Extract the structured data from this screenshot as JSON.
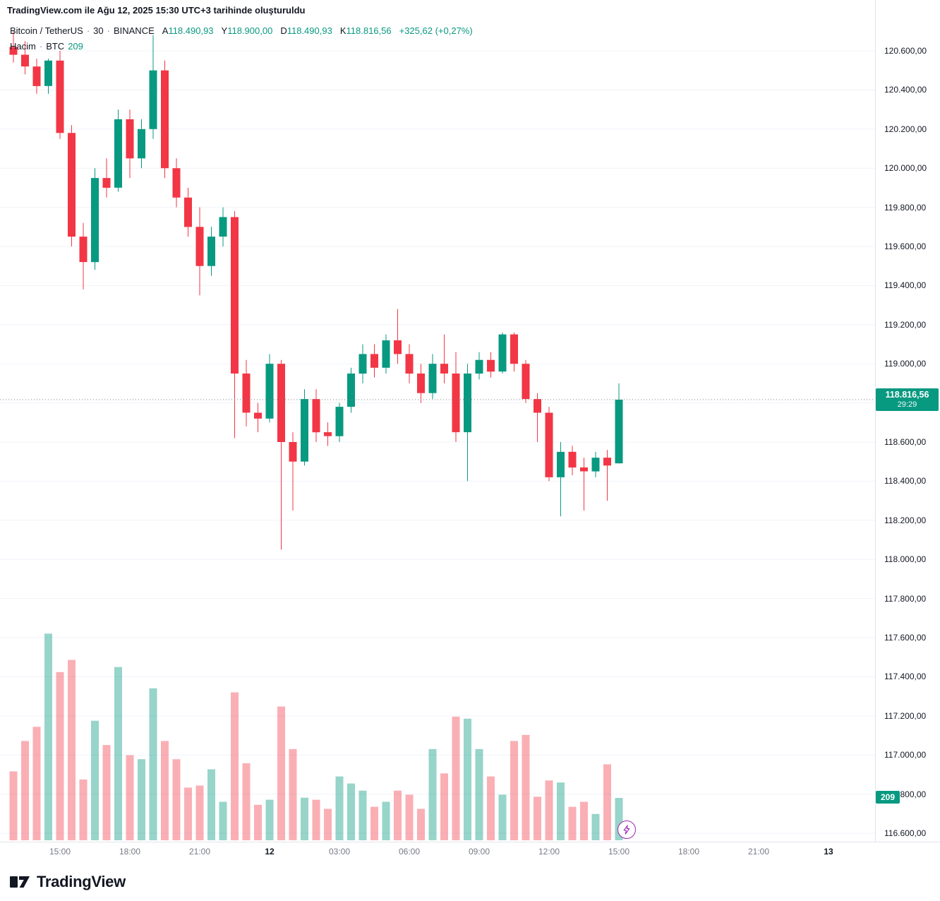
{
  "attribution": "TradingView.com ile Ağu 12, 2025 15:30 UTC+3 tarihinde oluşturuldu",
  "legend": {
    "symbol": "Bitcoin / TetherUS",
    "separator": "·",
    "interval": "30",
    "exchange": "BINANCE",
    "ohlc": [
      {
        "label": "A",
        "value": "118.490,93"
      },
      {
        "label": "Y",
        "value": "118.900,00"
      },
      {
        "label": "D",
        "value": "118.490,93"
      },
      {
        "label": "K",
        "value": "118.816,56"
      }
    ],
    "change": "+325,62 (+0,27%)",
    "row2": {
      "label": "Hacim",
      "separator": "·",
      "unit": "BTC",
      "value": "209"
    }
  },
  "price_flag": {
    "value": "118.816,56",
    "countdown": "29:29"
  },
  "volume_flag": "209",
  "logo": {
    "wordmark": "TradingView"
  },
  "colors": {
    "up": "#089981",
    "down": "#f23645",
    "vol_up": "rgba(8,153,129,0.42)",
    "vol_down": "rgba(242,54,69,0.40)",
    "grid": "#f0f3fa",
    "axis_line": "#e0e3eb",
    "price_line": "#787b86",
    "marker": "#9c27b0"
  },
  "chart_data": {
    "type": "candlestick",
    "title": "Bitcoin / TetherUS 30m BINANCE",
    "y_axis": {
      "min": 116600,
      "max": 120600,
      "step": 200,
      "tick_labels": [
        "120.600,00",
        "120.400,00",
        "120.200,00",
        "120.000,00",
        "119.800,00",
        "119.600,00",
        "119.400,00",
        "119.200,00",
        "119.000,00",
        "118.800,00",
        "118.600,00",
        "118.400,00",
        "118.200,00",
        "118.000,00",
        "117.800,00",
        "117.600,00",
        "117.400,00",
        "117.200,00",
        "117.000,00",
        "116.800,00",
        "116.600,00"
      ]
    },
    "x_labels": [
      {
        "i": 4,
        "t": "15:00",
        "strong": false
      },
      {
        "i": 10,
        "t": "18:00",
        "strong": false
      },
      {
        "i": 16,
        "t": "21:00",
        "strong": false
      },
      {
        "i": 22,
        "t": "12",
        "strong": true
      },
      {
        "i": 28,
        "t": "03:00",
        "strong": false
      },
      {
        "i": 34,
        "t": "06:00",
        "strong": false
      },
      {
        "i": 40,
        "t": "09:00",
        "strong": false
      },
      {
        "i": 46,
        "t": "12:00",
        "strong": false
      },
      {
        "i": 52,
        "t": "15:00",
        "strong": false
      },
      {
        "i": 58,
        "t": "18:00",
        "strong": false
      },
      {
        "i": 64,
        "t": "21:00",
        "strong": false
      },
      {
        "i": 70,
        "t": "13",
        "strong": true
      }
    ],
    "series_note": "candles are [open, high, low, close, volume]",
    "candles": [
      [
        120620,
        120700,
        120540,
        120580,
        340
      ],
      [
        120580,
        120650,
        120480,
        120520,
        490
      ],
      [
        120520,
        120560,
        120380,
        120420,
        560
      ],
      [
        120420,
        120560,
        120380,
        120550,
        1020
      ],
      [
        120550,
        120600,
        120150,
        120180,
        830
      ],
      [
        120180,
        120220,
        119600,
        119650,
        890
      ],
      [
        119650,
        119720,
        119380,
        119520,
        300
      ],
      [
        119520,
        120000,
        119480,
        119950,
        590
      ],
      [
        119950,
        120050,
        119850,
        119900,
        470
      ],
      [
        119900,
        120300,
        119880,
        120250,
        855
      ],
      [
        120250,
        120300,
        119950,
        120050,
        420
      ],
      [
        120050,
        120250,
        120000,
        120200,
        400
      ],
      [
        120200,
        120680,
        120150,
        120500,
        750
      ],
      [
        120500,
        120550,
        119950,
        120000,
        490
      ],
      [
        120000,
        120050,
        119800,
        119850,
        400
      ],
      [
        119850,
        119900,
        119650,
        119700,
        260
      ],
      [
        119700,
        119800,
        119350,
        119500,
        270
      ],
      [
        119500,
        119700,
        119450,
        119650,
        350
      ],
      [
        119650,
        119800,
        119600,
        119750,
        190
      ],
      [
        119750,
        119780,
        118620,
        118950,
        730
      ],
      [
        118950,
        119020,
        118680,
        118750,
        380
      ],
      [
        118750,
        118800,
        118650,
        118720,
        175
      ],
      [
        118720,
        119050,
        118700,
        119000,
        200
      ],
      [
        119000,
        119020,
        118050,
        118600,
        660
      ],
      [
        118600,
        118650,
        118250,
        118500,
        450
      ],
      [
        118500,
        118870,
        118480,
        118820,
        210
      ],
      [
        118820,
        118870,
        118600,
        118650,
        200
      ],
      [
        118650,
        118700,
        118580,
        118630,
        155
      ],
      [
        118630,
        118800,
        118600,
        118780,
        315
      ],
      [
        118780,
        118980,
        118750,
        118950,
        280
      ],
      [
        118950,
        119100,
        118900,
        119050,
        245
      ],
      [
        119050,
        119100,
        118930,
        118980,
        165
      ],
      [
        118980,
        119150,
        118950,
        119120,
        190
      ],
      [
        119120,
        119280,
        119000,
        119050,
        245
      ],
      [
        119050,
        119100,
        118900,
        118950,
        225
      ],
      [
        118950,
        119000,
        118800,
        118850,
        155
      ],
      [
        118850,
        119050,
        118820,
        119000,
        450
      ],
      [
        119000,
        119150,
        118900,
        118950,
        330
      ],
      [
        118950,
        119060,
        118600,
        118650,
        610
      ],
      [
        118650,
        119000,
        118400,
        118950,
        600
      ],
      [
        118950,
        119060,
        118920,
        119020,
        450
      ],
      [
        119020,
        119060,
        118930,
        118960,
        315
      ],
      [
        118960,
        119160,
        118950,
        119150,
        225
      ],
      [
        119150,
        119160,
        118960,
        119000,
        490
      ],
      [
        119000,
        119020,
        118800,
        118820,
        520
      ],
      [
        118820,
        118850,
        118600,
        118750,
        215
      ],
      [
        118750,
        118780,
        118400,
        118420,
        295
      ],
      [
        118420,
        118600,
        118220,
        118550,
        285
      ],
      [
        118550,
        118580,
        118430,
        118470,
        165
      ],
      [
        118470,
        118520,
        118250,
        118450,
        190
      ],
      [
        118450,
        118550,
        118420,
        118520,
        130
      ],
      [
        118520,
        118560,
        118300,
        118480,
        375
      ],
      [
        118490.93,
        118900,
        118490.93,
        118816.56,
        209
      ]
    ],
    "last_price": 118816.56,
    "last_volume": 209
  }
}
